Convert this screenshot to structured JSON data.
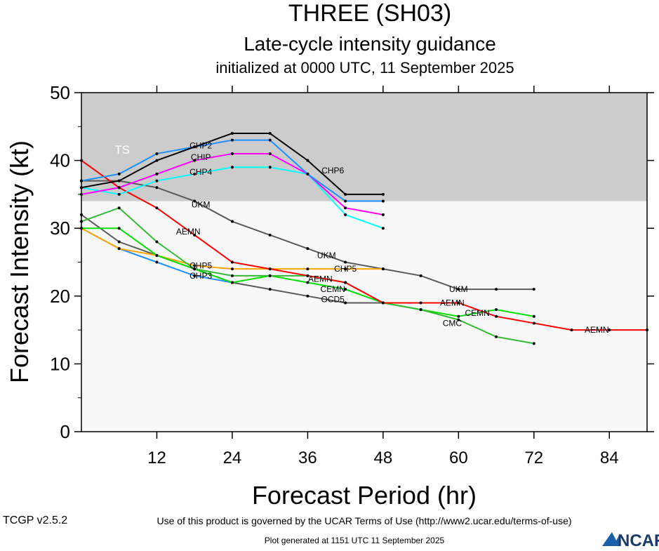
{
  "chart_data": {
    "type": "line",
    "title": "THREE (SH03)",
    "subtitle": "Late-cycle intensity guidance",
    "subtitle2": "initialized at 0000 UTC, 11 September 2025",
    "xlabel": "Forecast Period (hr)",
    "ylabel": "Forecast Intensity (kt)",
    "xlim": [
      0,
      90
    ],
    "ylim": [
      0,
      50
    ],
    "xticks": [
      12,
      24,
      36,
      48,
      60,
      72,
      84
    ],
    "yticks": [
      0,
      10,
      20,
      30,
      40,
      50
    ],
    "bands": [
      {
        "label": "TS",
        "from": 34,
        "to": 50,
        "color": "#cccccc"
      }
    ],
    "series": [
      {
        "name": "UKM",
        "color": "#5a5a5a",
        "x": [
          0,
          6,
          12,
          18,
          24,
          30,
          36,
          42,
          48,
          54,
          60,
          66,
          72
        ],
        "y": [
          37,
          37,
          36,
          34,
          31,
          29,
          27,
          25,
          24,
          23,
          21,
          21,
          21
        ]
      },
      {
        "name": "OCD5",
        "color": "#5a5a5a",
        "x": [
          0,
          6,
          12,
          18,
          24,
          30,
          36,
          42,
          48
        ],
        "y": [
          32,
          28,
          26,
          24,
          22,
          21,
          20,
          19,
          19
        ]
      },
      {
        "name": "CHP3",
        "color": "#1e90ff",
        "x": [
          0,
          6,
          12,
          18,
          24
        ],
        "y": [
          30,
          27,
          25,
          23,
          22
        ]
      },
      {
        "name": "CHP5",
        "color": "#ffa500",
        "x": [
          0,
          6,
          12,
          18,
          24,
          30,
          36,
          42,
          48
        ],
        "y": [
          30,
          27,
          26,
          24.5,
          24,
          24,
          24,
          24,
          24
        ]
      },
      {
        "name": "CEMN",
        "color": "#00e000",
        "x": [
          0,
          6,
          12,
          18,
          24,
          30,
          36,
          42,
          48,
          54,
          60,
          66,
          72
        ],
        "y": [
          30,
          30,
          26,
          24,
          22,
          23,
          22,
          21,
          19,
          18,
          17,
          18,
          17
        ]
      },
      {
        "name": "CMC",
        "color": "#33bb33",
        "x": [
          0,
          6,
          12,
          18,
          24,
          30,
          36,
          42,
          48,
          54,
          60,
          66,
          72
        ],
        "y": [
          31,
          33,
          28,
          24,
          23,
          23,
          23,
          22,
          19,
          18,
          16.5,
          14,
          13
        ]
      },
      {
        "name": "AEMN",
        "color": "#ff0000",
        "x": [
          0,
          6,
          12,
          18,
          24,
          30,
          36,
          42,
          48,
          54,
          60,
          66,
          72,
          78,
          84,
          90
        ],
        "y": [
          40,
          36,
          33,
          29,
          25,
          24,
          23,
          22,
          19,
          19,
          19,
          17,
          16,
          15,
          15,
          15
        ]
      },
      {
        "name": "CHP4",
        "color": "#00ffff",
        "x": [
          0,
          6,
          12,
          18,
          24,
          30,
          36,
          42,
          48
        ],
        "y": [
          36,
          35,
          37,
          38,
          39,
          39,
          38,
          32,
          30
        ]
      },
      {
        "name": "CHIP",
        "color": "#ff00ff",
        "x": [
          0,
          6,
          12,
          18,
          24,
          30,
          36,
          42,
          48
        ],
        "y": [
          35,
          36,
          38,
          40,
          41,
          41,
          38,
          33,
          32
        ]
      },
      {
        "name": "CHP2",
        "color": "#1e90ff",
        "x": [
          0,
          6,
          12,
          18,
          24,
          30,
          36,
          42,
          48
        ],
        "y": [
          37,
          38,
          41,
          42,
          43,
          43,
          38,
          34,
          34
        ]
      },
      {
        "name": "CHP6",
        "color": "#000000",
        "x": [
          0,
          6,
          12,
          18,
          24,
          30,
          36,
          42,
          48
        ],
        "y": [
          36,
          37,
          40,
          42,
          44,
          44,
          40,
          35,
          35
        ]
      }
    ],
    "labels": [
      {
        "text": "CHP6",
        "x": 40,
        "y": 38.5
      },
      {
        "text": "CHP2",
        "x": 19,
        "y": 42.2
      },
      {
        "text": "CHIP",
        "x": 19,
        "y": 40.5
      },
      {
        "text": "CHP4",
        "x": 19,
        "y": 38.3
      },
      {
        "text": "UKM",
        "x": 19,
        "y": 33.5
      },
      {
        "text": "UKM",
        "x": 39,
        "y": 26
      },
      {
        "text": "UKM",
        "x": 60,
        "y": 21
      },
      {
        "text": "AEMN",
        "x": 17,
        "y": 29.5
      },
      {
        "text": "AEMN",
        "x": 38,
        "y": 22.5
      },
      {
        "text": "AEMN",
        "x": 59,
        "y": 19
      },
      {
        "text": "AEMN",
        "x": 82,
        "y": 15
      },
      {
        "text": "CHP5",
        "x": 19,
        "y": 24.5
      },
      {
        "text": "CHP5",
        "x": 42,
        "y": 24
      },
      {
        "text": "CHP3",
        "x": 19,
        "y": 23
      },
      {
        "text": "OCD5",
        "x": 40,
        "y": 19.5
      },
      {
        "text": "CEMN",
        "x": 40,
        "y": 21
      },
      {
        "text": "CEMN",
        "x": 63,
        "y": 17.5
      },
      {
        "text": "CMC",
        "x": 59,
        "y": 16
      }
    ]
  },
  "footer": {
    "version": "TCGP v2.5.2",
    "terms": "Use of this product is governed by the UCAR Terms of Use (http://www2.ucar.edu/terms-of-use)",
    "generated": "Plot generated at 1151 UTC   11 September 2025",
    "logo": "NCAR"
  }
}
